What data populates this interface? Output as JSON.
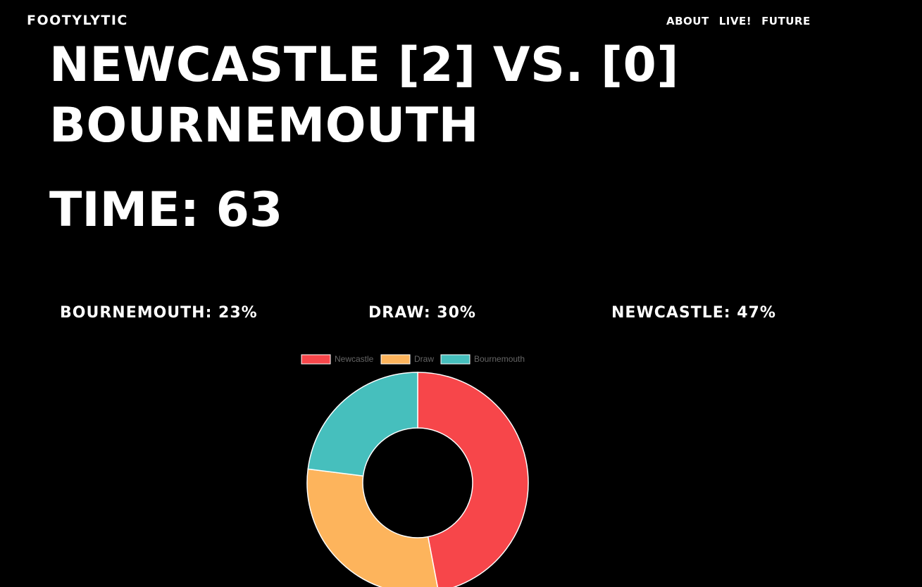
{
  "header": {
    "brand": "FOOTYLYTIC",
    "nav": [
      "ABOUT",
      "LIVE!",
      "FUTURE"
    ]
  },
  "match": {
    "headline": "NEWCASTLE [2] VS. [0] BOURNEMOUTH",
    "time": "TIME: 63"
  },
  "probabilities": {
    "bournemouth": "BOURNEMOUTH: 23%",
    "draw": "DRAW: 30%",
    "newcastle": "NEWCASTLE: 47%"
  },
  "chart_data": {
    "type": "pie",
    "variant": "doughnut",
    "legend_position": "top",
    "categories": [
      "Newcastle",
      "Draw",
      "Bournemouth"
    ],
    "values": [
      47,
      30,
      23
    ],
    "colors": [
      "#F7464A",
      "#FDB45C",
      "#46BFBD"
    ]
  }
}
